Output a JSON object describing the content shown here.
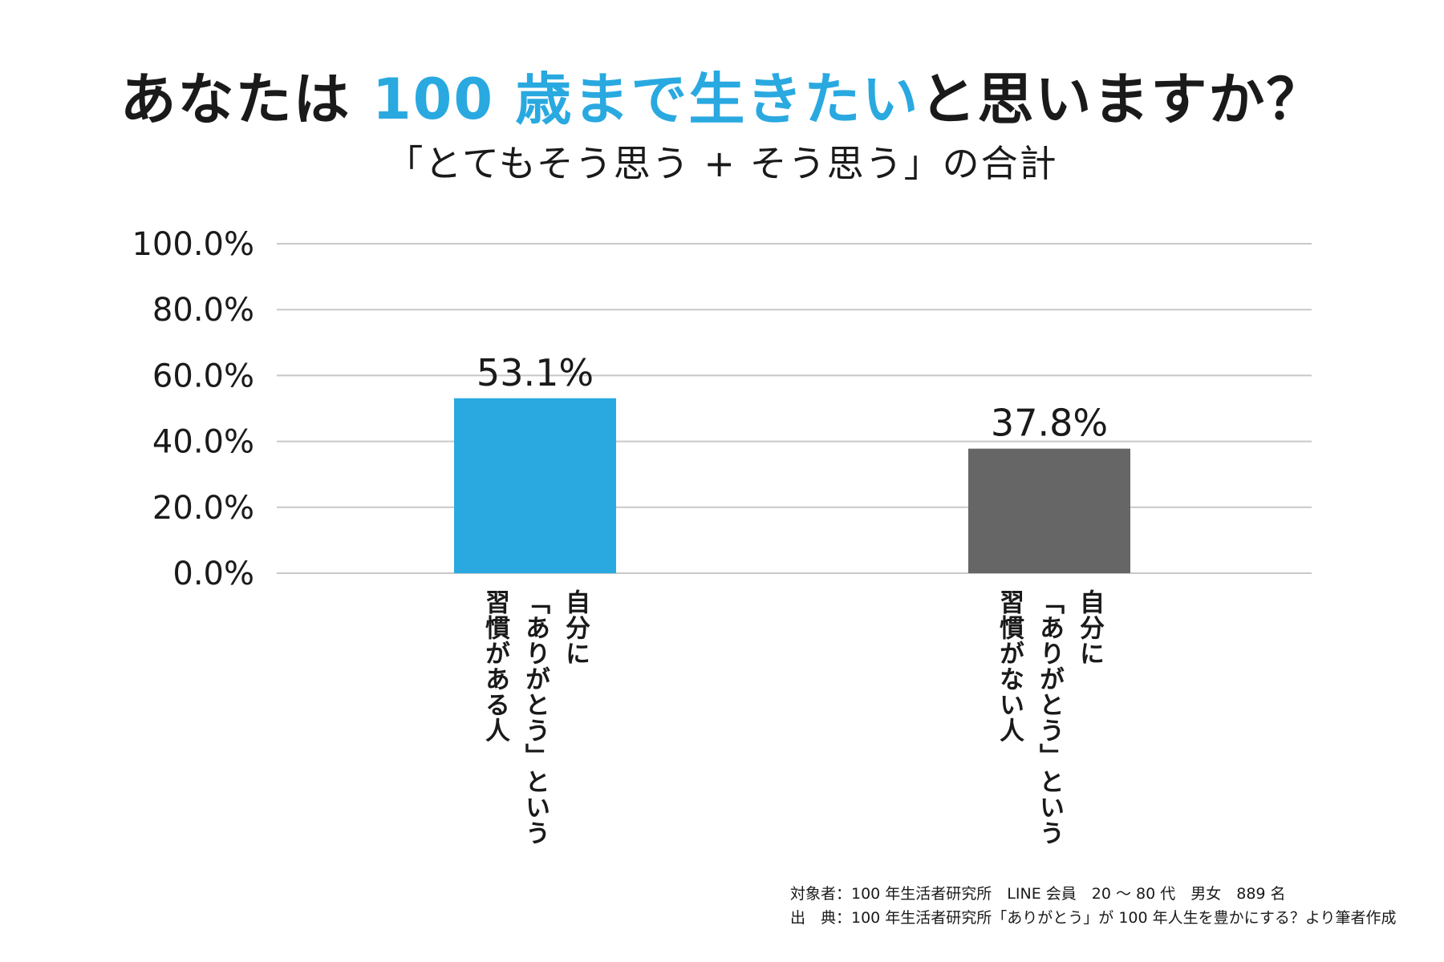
{
  "title": {
    "prefix": "あなたは",
    "highlight": "100 歳まで生きたい",
    "suffix": "と思いますか？"
  },
  "subtitle": "「とてもそう思う + そう思う」の合計",
  "colors": {
    "accent": "#29a9e0",
    "secondary": "#666666",
    "grid": "#c8c8c8"
  },
  "chart_data": {
    "type": "bar",
    "ylim": [
      0,
      100
    ],
    "yticks": [
      "0.0%",
      "20.0%",
      "40.0%",
      "60.0%",
      "80.0%",
      "100.0%"
    ],
    "grid": true,
    "categories": [
      {
        "lines": [
          "自分に",
          "「ありがとう」という",
          "習慣がある人"
        ]
      },
      {
        "lines": [
          "自分に",
          "「ありがとう」という",
          "習慣がない人"
        ]
      }
    ],
    "values": [
      53.1,
      37.8
    ],
    "value_labels": [
      "53.1%",
      "37.8%"
    ],
    "bar_colors": [
      "#29a9e0",
      "#666666"
    ]
  },
  "footnotes": [
    "対象者：100 年生活者研究所　LINE 会員　20 ～ 80 代　男女　889 名",
    "出　典：100 年生活者研究所「ありがとう」が 100 年人生を豊かにする？より筆者作成"
  ]
}
